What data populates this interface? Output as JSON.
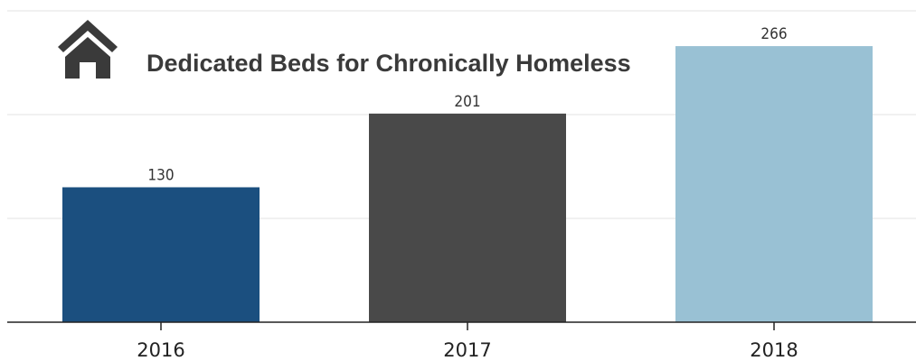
{
  "chart_data": {
    "type": "bar",
    "title": "Dedicated Beds for Chronically Homeless",
    "categories": [
      "2016",
      "2017",
      "2018"
    ],
    "values": [
      130,
      201,
      266
    ],
    "colors": [
      "#1b4f7f",
      "#494949",
      "#99c1d4"
    ],
    "xlabel": "",
    "ylabel": "",
    "ylim": [
      0,
      300
    ],
    "grid": true,
    "gridlines": [
      100,
      200,
      300
    ],
    "title_icon": "house-icon"
  }
}
